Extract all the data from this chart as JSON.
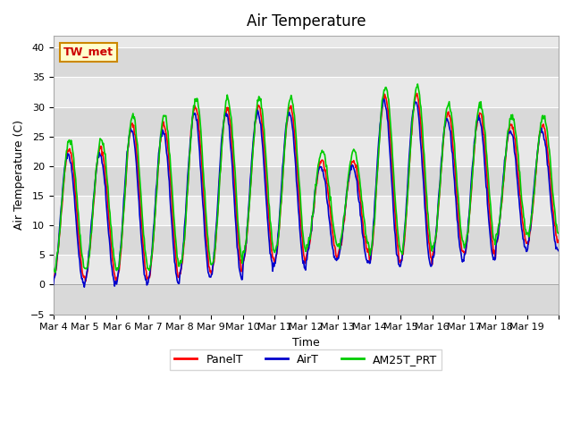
{
  "title": "Air Temperature",
  "xlabel": "Time",
  "ylabel": "Air Temperature (C)",
  "ylim": [
    -5,
    42
  ],
  "yticks": [
    -5,
    0,
    5,
    10,
    15,
    20,
    25,
    30,
    35,
    40
  ],
  "background_color": "#ffffff",
  "plot_bg_color": "#e8e8e8",
  "band_color": "#d0d0d0",
  "annotation_text": "TW_met",
  "annotation_bg": "#ffffcc",
  "annotation_border": "#cc8800",
  "annotation_text_color": "#cc0000",
  "legend_labels": [
    "PanelT",
    "AirT",
    "AM25T_PRT"
  ],
  "legend_colors": [
    "#ff0000",
    "#0000cc",
    "#00cc00"
  ],
  "line_width": 1.2,
  "days": [
    "Mar 4",
    "Mar 5",
    "Mar 6",
    "Mar 7",
    "Mar 8",
    "Mar 9",
    "Mar 10",
    "Mar 11",
    "Mar 12",
    "Mar 13",
    "Mar 14",
    "Mar 15",
    "Mar 16",
    "Mar 17",
    "Mar 18",
    "Mar 19"
  ],
  "num_days": 16,
  "samples_per_day": 48
}
